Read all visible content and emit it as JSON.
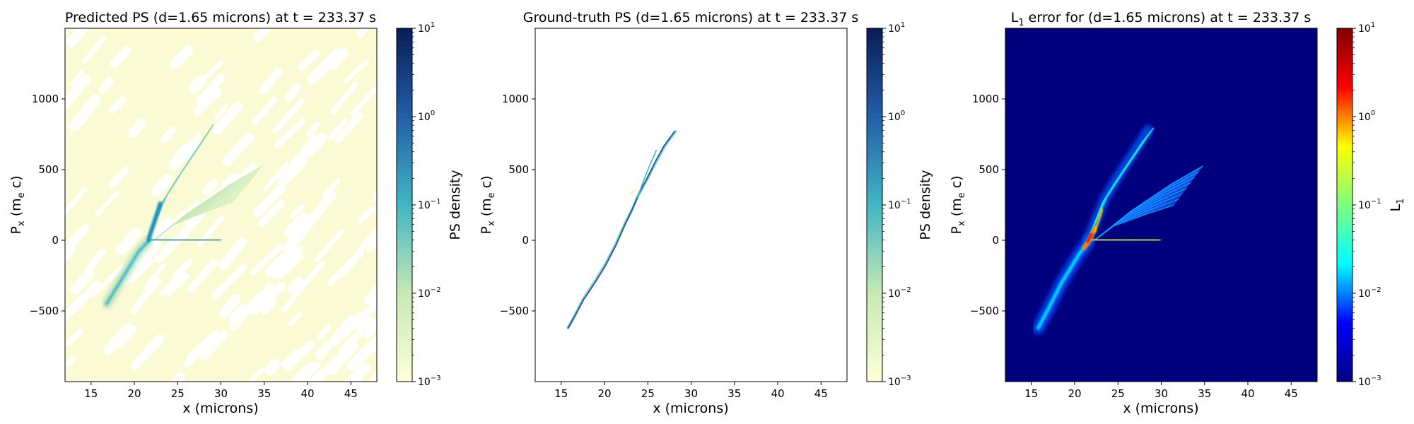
{
  "chart_data": [
    {
      "type": "heatmap",
      "title_parts": [
        "Predicted PS (d=1.65 microns) at t = 233.37 s"
      ],
      "xlabel": "x (microns)",
      "ylabel_parts": [
        "P",
        "x",
        " (m",
        "e",
        " c)"
      ],
      "xlim": [
        12,
        48
      ],
      "ylim": [
        -1000,
        1500
      ],
      "xticks": [
        15,
        20,
        25,
        30,
        35,
        40,
        45
      ],
      "yticks": [
        -500,
        0,
        500,
        1000
      ],
      "colorbar": {
        "label": "PS density",
        "scale": "log",
        "range": [
          0.001,
          10
        ],
        "ticks": [
          -3,
          -2,
          -1,
          0,
          1
        ],
        "colormap": "YlGnBu",
        "colors": [
          "#ffffd9",
          "#c7e9b4",
          "#41b6c4",
          "#225ea8",
          "#081d58"
        ]
      },
      "background_color": "#fafbd5",
      "features": {
        "low_momentum_branch": {
          "x": [
            16.8,
            18.5,
            20.5,
            21.7
          ],
          "px": [
            -450,
            -280,
            -80,
            0
          ]
        },
        "main_branch": {
          "x": [
            21.5,
            22.5,
            23.5,
            25.0,
            26.8,
            28.5
          ],
          "px": [
            0,
            150,
            300,
            450,
            620,
            780
          ]
        },
        "horizontal_branch": {
          "x": [
            22.0,
            24.0,
            27.0,
            29.8
          ],
          "px": [
            5,
            3,
            1,
            0
          ]
        },
        "upper_fan": {
          "x": [
            22.3,
            26.0,
            30.0,
            33.0
          ],
          "px": [
            0,
            200,
            380,
            500
          ]
        }
      }
    },
    {
      "type": "heatmap",
      "title_parts": [
        "Ground-truth PS (d=1.65 microns) at t = 233.37 s"
      ],
      "xlabel": "x (microns)",
      "ylabel_parts": [
        "P",
        "x",
        " (m",
        "e",
        " c)"
      ],
      "xlim": [
        12,
        48
      ],
      "ylim": [
        -1000,
        1500
      ],
      "xticks": [
        15,
        20,
        25,
        30,
        35,
        40,
        45
      ],
      "yticks": [
        -500,
        0,
        500,
        1000
      ],
      "colorbar": {
        "label": "PS density",
        "scale": "log",
        "range": [
          0.001,
          10
        ],
        "ticks": [
          -3,
          -2,
          -1,
          0,
          1
        ],
        "colormap": "YlGnBu",
        "colors": [
          "#ffffd9",
          "#c7e9b4",
          "#41b6c4",
          "#225ea8",
          "#081d58"
        ]
      },
      "background_color": "#ffffff",
      "features": {
        "trace": {
          "x": [
            15.8,
            16.5,
            17.5,
            18.8,
            20.0,
            21.2,
            22.3,
            23.2,
            24.0,
            25.0,
            26.0,
            27.0,
            28.2
          ],
          "px": [
            -620,
            -540,
            -420,
            -300,
            -180,
            -40,
            110,
            220,
            330,
            440,
            560,
            670,
            770
          ]
        },
        "branch": {
          "x": [
            23.8,
            24.5,
            25.3,
            26.0
          ],
          "px": [
            300,
            420,
            540,
            640
          ]
        }
      }
    },
    {
      "type": "heatmap",
      "title_parts": [
        "L",
        "1",
        " error for (d=1.65 microns) at t = 233.37 s"
      ],
      "xlabel": "x (microns)",
      "ylabel_parts": [
        "P",
        "x",
        " (m",
        "e",
        " c)"
      ],
      "xlim": [
        12,
        48
      ],
      "ylim": [
        -1000,
        1500
      ],
      "xticks": [
        15,
        20,
        25,
        30,
        35,
        40,
        45
      ],
      "yticks": [
        -500,
        0,
        500,
        1000
      ],
      "colorbar": {
        "label_parts": [
          "L",
          "1"
        ],
        "scale": "log",
        "range": [
          0.001,
          10
        ],
        "ticks": [
          -3,
          -2,
          -1,
          0,
          1
        ],
        "colormap": "jet",
        "colors": [
          "#00007f",
          "#0000ff",
          "#00ffff",
          "#7fff7f",
          "#ffff00",
          "#ff0000",
          "#7f0000"
        ]
      },
      "background_color": "#00007f",
      "features": {
        "low_momentum_branch": {
          "x": [
            15.8,
            17.0,
            18.5,
            20.5,
            21.7
          ],
          "px": [
            -620,
            -480,
            -300,
            -100,
            0
          ]
        },
        "main_branch": {
          "x": [
            21.5,
            22.5,
            23.5,
            25.0,
            26.8,
            28.5
          ],
          "px": [
            0,
            150,
            300,
            450,
            620,
            780
          ]
        },
        "horizontal_branch": {
          "x": [
            22.0,
            24.0,
            27.0,
            29.8
          ],
          "px": [
            5,
            3,
            1,
            0
          ]
        },
        "upper_fan": {
          "x": [
            22.3,
            26.0,
            30.0,
            33.0
          ],
          "px": [
            0,
            200,
            380,
            500
          ]
        }
      }
    }
  ]
}
